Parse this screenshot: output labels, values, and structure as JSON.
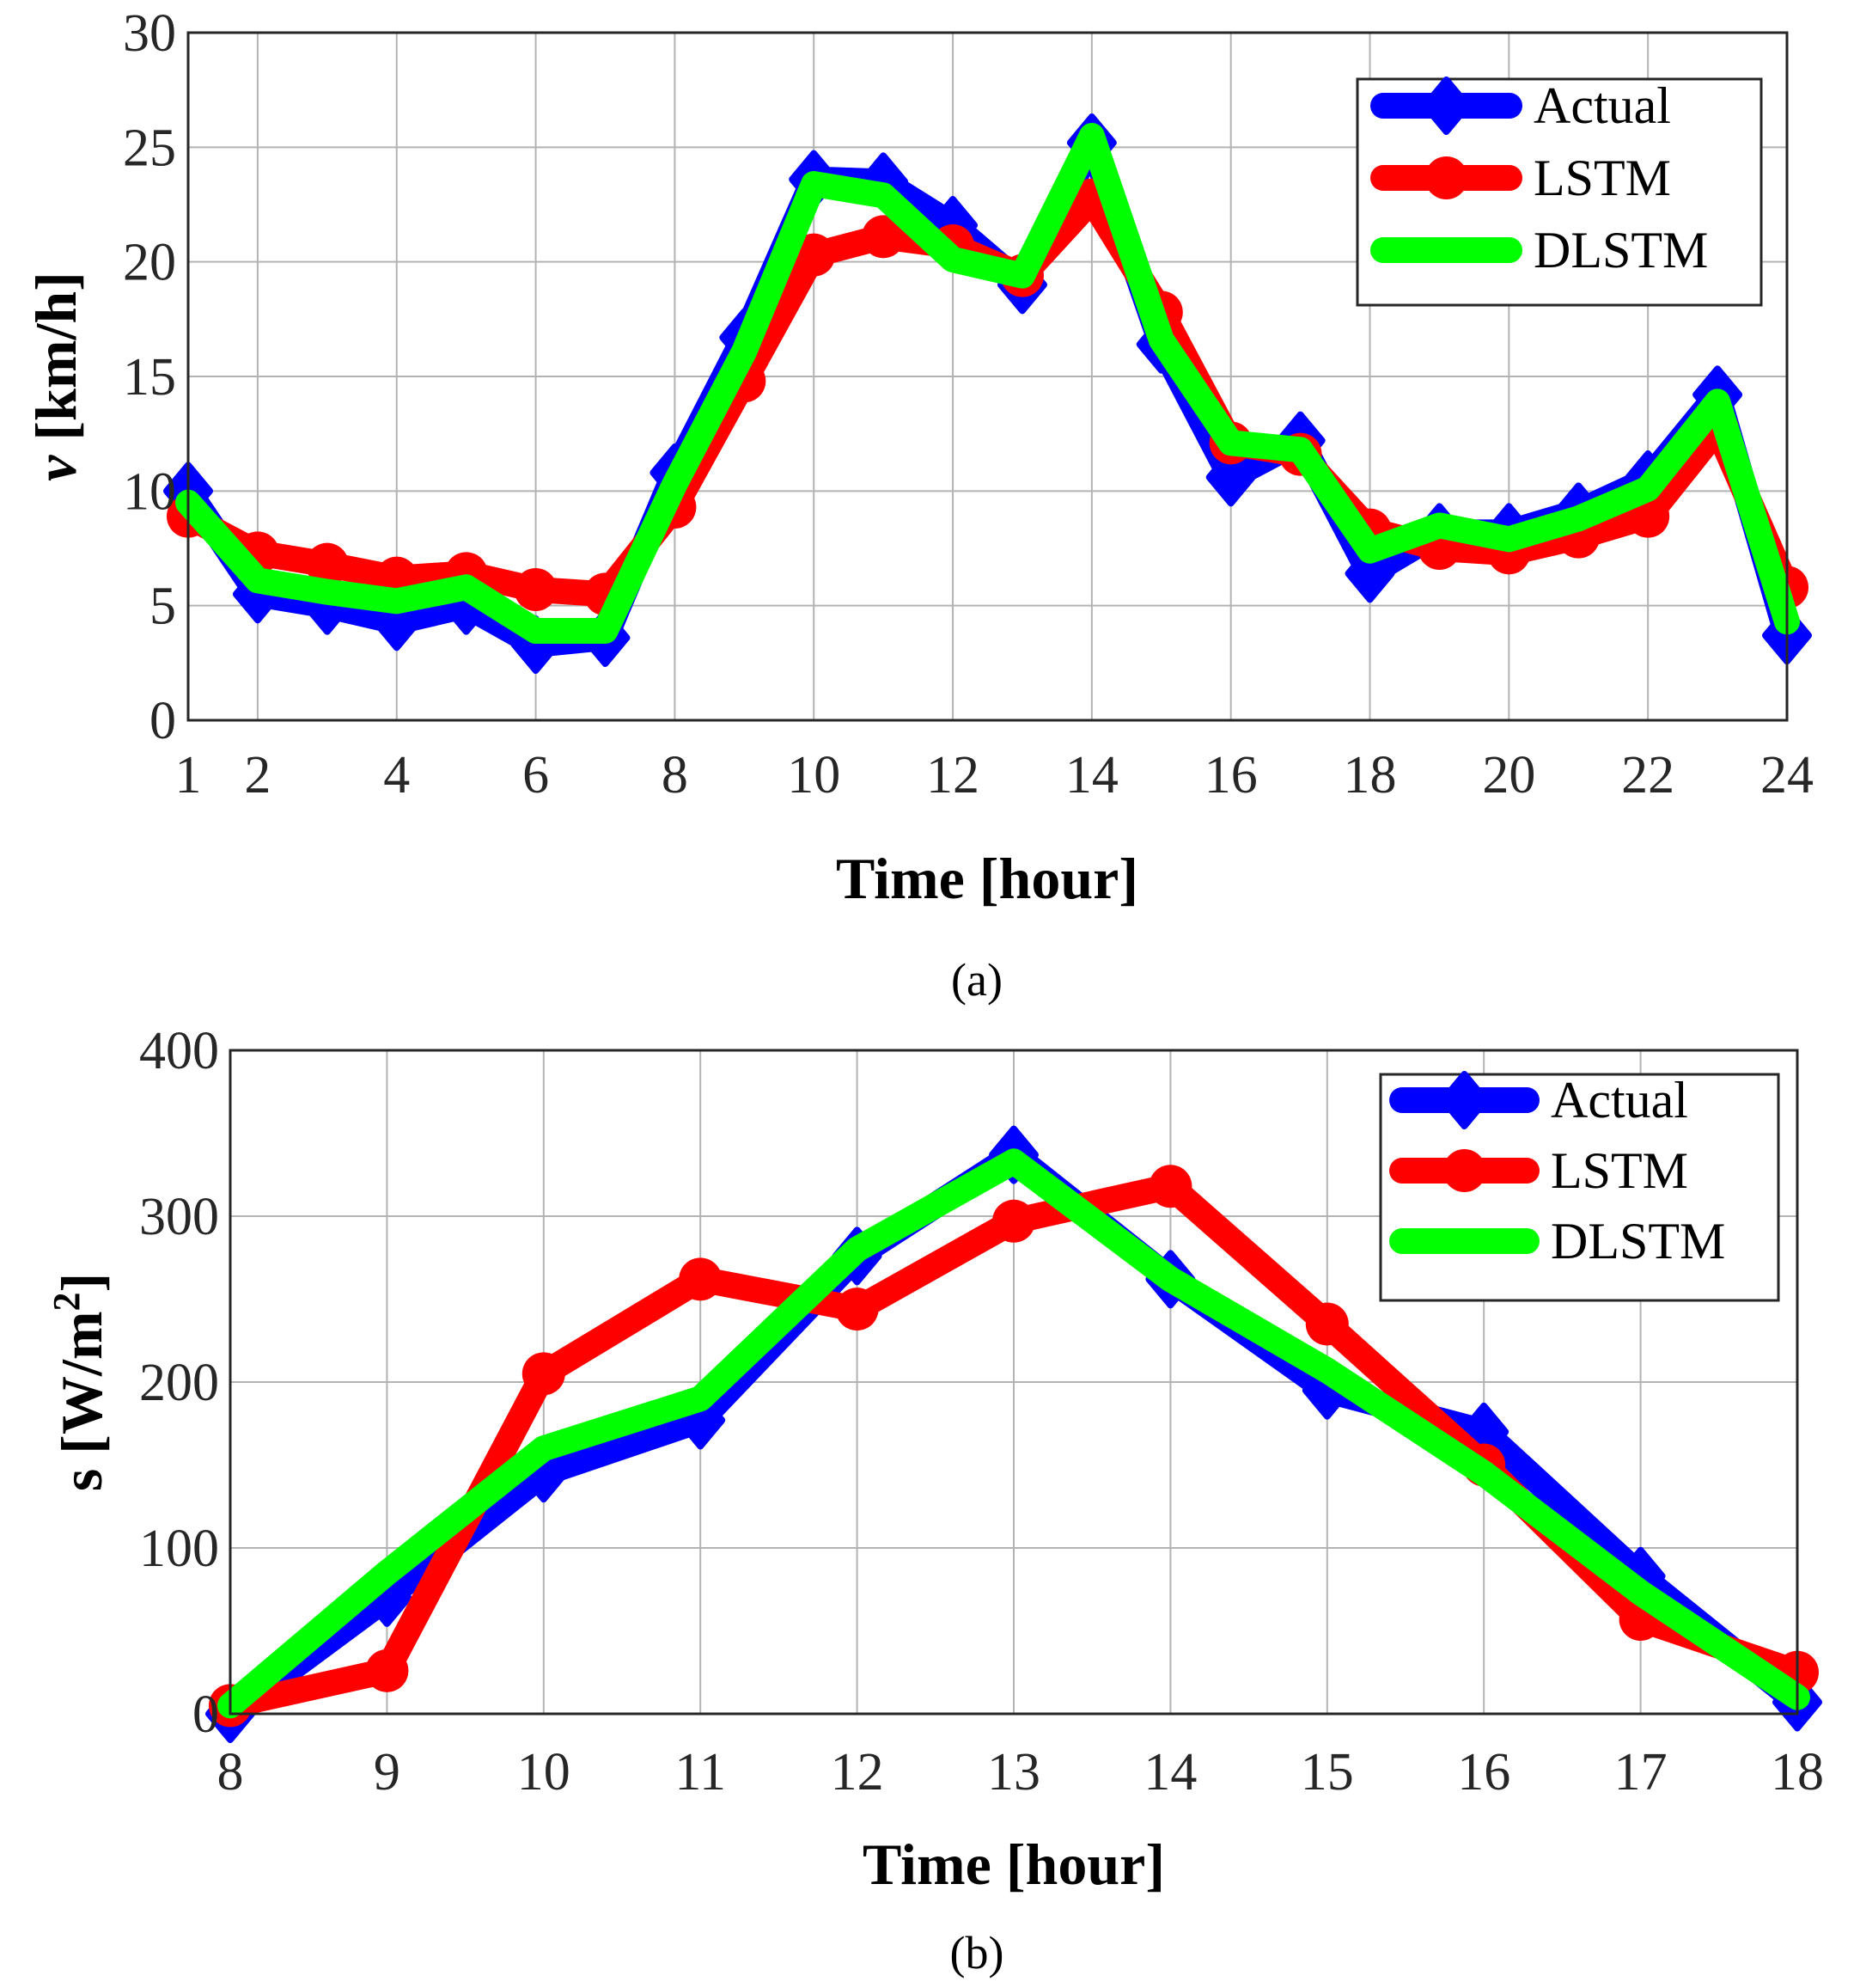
{
  "chart_data": [
    {
      "type": "line",
      "panel_label": "(a)",
      "xlabel": "Time [hour]",
      "ylabel_symbol": "v",
      "ylabel_unit": " [km/h]",
      "xlim": [
        1,
        24
      ],
      "ylim": [
        0,
        30
      ],
      "xticks": [
        1,
        2,
        4,
        6,
        8,
        10,
        12,
        14,
        16,
        18,
        20,
        22,
        24
      ],
      "yticks": [
        0,
        5,
        10,
        15,
        20,
        25,
        30
      ],
      "legend_position": "top-right",
      "x": [
        1,
        2,
        3,
        4,
        5,
        6,
        7,
        8,
        9,
        10,
        11,
        12,
        13,
        14,
        15,
        16,
        17,
        18,
        19,
        20,
        21,
        22,
        23,
        24
      ],
      "series": [
        {
          "name": "Actual",
          "color": "#0000ff",
          "marker": "diamond",
          "values": [
            10.0,
            5.5,
            5.0,
            4.3,
            5.0,
            3.3,
            3.6,
            10.8,
            16.7,
            23.6,
            23.5,
            21.6,
            19.0,
            25.2,
            16.4,
            10.6,
            12.2,
            6.4,
            8.2,
            8.2,
            9.1,
            10.5,
            14.2,
            3.7
          ]
        },
        {
          "name": "LSTM",
          "color": "#ff0000",
          "marker": "circle",
          "values": [
            8.9,
            7.3,
            6.8,
            6.2,
            6.4,
            5.7,
            5.5,
            9.3,
            14.8,
            20.3,
            21.1,
            20.7,
            19.4,
            22.7,
            17.8,
            12.1,
            11.6,
            8.3,
            7.5,
            7.3,
            8.0,
            8.9,
            12.7,
            5.8
          ]
        },
        {
          "name": "DLSTM",
          "color": "#00ff00",
          "marker": "none",
          "values": [
            9.5,
            6.1,
            5.6,
            5.2,
            5.8,
            3.9,
            3.9,
            10.3,
            16.1,
            23.4,
            22.9,
            20.1,
            19.4,
            25.5,
            16.6,
            12.1,
            11.8,
            7.4,
            8.5,
            7.9,
            8.8,
            10.1,
            13.9,
            4.3
          ]
        }
      ]
    },
    {
      "type": "line",
      "panel_label": "(b)",
      "xlabel": "Time [hour]",
      "ylabel_main": "s [W/m",
      "ylabel_sup": "2",
      "ylabel_close": "]",
      "xlim": [
        8,
        18
      ],
      "ylim": [
        0,
        400
      ],
      "xticks": [
        8,
        9,
        10,
        11,
        12,
        13,
        14,
        15,
        16,
        17,
        18
      ],
      "yticks": [
        0,
        100,
        200,
        300,
        400
      ],
      "legend_position": "top-right",
      "x": [
        8,
        9,
        10,
        11,
        12,
        13,
        14,
        15,
        16,
        17,
        18
      ],
      "series": [
        {
          "name": "Actual",
          "color": "#0000ff",
          "marker": "diamond",
          "values": [
            0,
            70,
            145,
            177,
            276,
            337,
            262,
            195,
            170,
            83,
            7
          ]
        },
        {
          "name": "LSTM",
          "color": "#ff0000",
          "marker": "circle",
          "values": [
            5,
            26,
            205,
            262,
            244,
            297,
            318,
            235,
            150,
            57,
            25
          ]
        },
        {
          "name": "DLSTM",
          "color": "#00ff00",
          "marker": "none",
          "values": [
            5,
            85,
            160,
            190,
            280,
            333,
            262,
            207,
            145,
            73,
            10
          ]
        }
      ]
    }
  ]
}
